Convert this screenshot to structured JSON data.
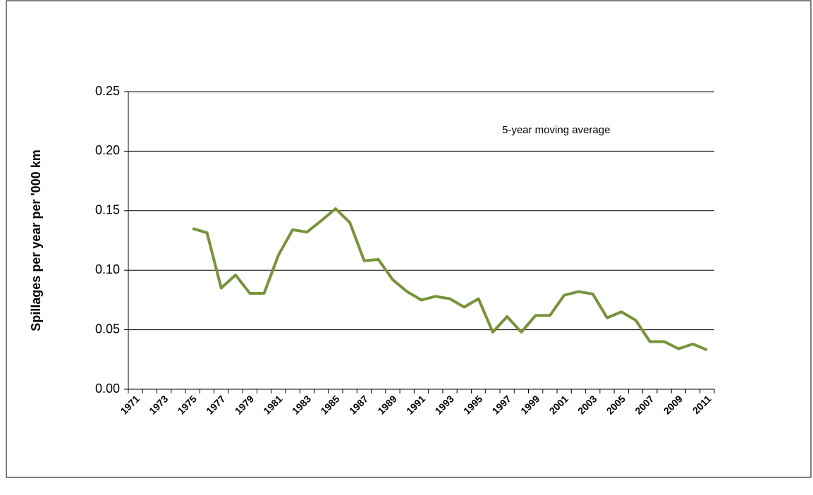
{
  "chart_data": {
    "type": "line",
    "y_label": "Spillages per year per '000 km",
    "annotation": "5-year moving average",
    "categories": [
      "1971",
      null,
      "1973",
      null,
      "1975",
      null,
      "1977",
      null,
      "1979",
      null,
      "1981",
      null,
      "1983",
      null,
      "1985",
      null,
      "1987",
      null,
      "1989",
      null,
      "1991",
      null,
      "1993",
      null,
      "1995",
      null,
      "1997",
      null,
      "1999",
      null,
      "2001",
      null,
      "2003",
      null,
      "2005",
      null,
      "2007",
      null,
      "2009",
      null,
      "2011"
    ],
    "series": [
      {
        "color": "#77933c",
        "values": [
          null,
          null,
          null,
          null,
          0.135,
          0.1315,
          0.085,
          0.096,
          0.0806,
          0.0806,
          0.1126,
          0.134,
          0.132,
          0.1416,
          0.1517,
          0.14,
          0.108,
          0.109,
          0.092,
          0.082,
          0.075,
          0.078,
          0.076,
          0.069,
          0.076,
          0.048,
          0.061,
          0.048,
          0.062,
          0.062,
          0.079,
          0.082,
          0.08,
          0.06,
          0.065,
          0.058,
          0.04,
          0.04,
          0.034,
          0.038,
          0.033
        ]
      }
    ],
    "ylim": [
      0,
      0.25
    ],
    "yticks": [
      {
        "value": 0,
        "label": "0.00"
      },
      0.05,
      {
        "value": 0.1,
        "label": "0.10"
      },
      0.15,
      {
        "value": 0.2,
        "label": "0.20"
      },
      0.25
    ],
    "grid": true
  }
}
